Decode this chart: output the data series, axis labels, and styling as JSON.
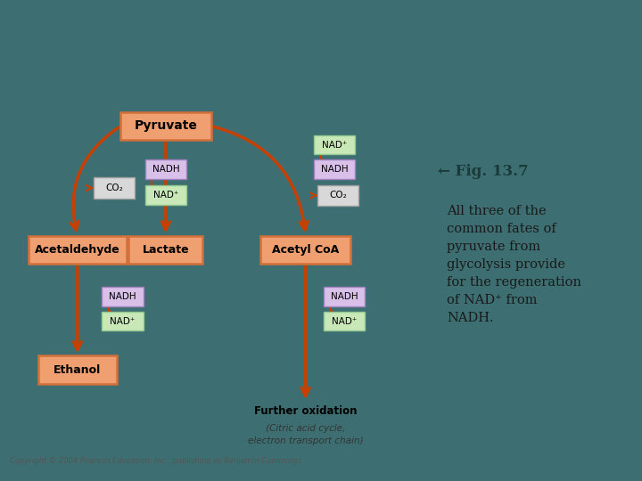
{
  "bg_teal": "#3d6f72",
  "bg_white": "#ffffff",
  "box_orange_edge": "#d4703a",
  "box_orange_fill": "#f0a070",
  "box_green_fill": "#c8e8b8",
  "box_green_edge": "#90c890",
  "box_purple_fill": "#d8c0e8",
  "box_purple_edge": "#a080c0",
  "box_gray_fill": "#d8d8d8",
  "box_gray_edge": "#a0a0a0",
  "arrow_color": "#c84000",
  "text_dark": "#1a3a3a",
  "fig_title": "Fig. 13.7",
  "fig_arrow": "←",
  "description": "All three of the\ncommon fates of\npyruvate from\nglycolysis provide\nfor the regeneration\nof NAD⁺ from\nNADH.",
  "copyright": "Copyright © 2004 Pearson Education, Inc., publishing as Benjamin Cummings",
  "further_text": "Further oxidation",
  "further_sub": "(Citric acid cycle,\nelectron transport chain)"
}
